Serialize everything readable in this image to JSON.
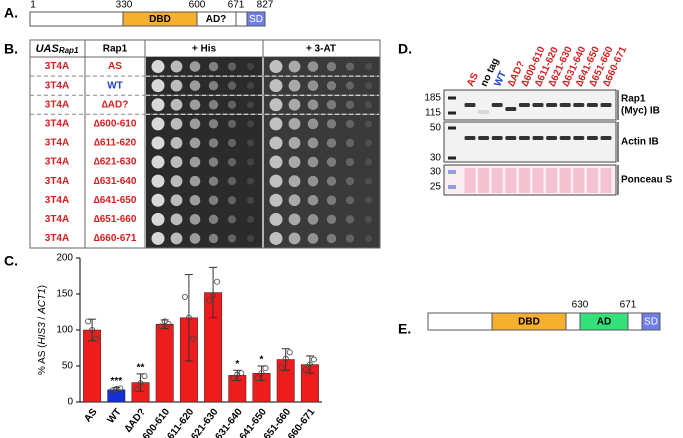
{
  "panel_letters": [
    "A.",
    "B.",
    "C.",
    "D.",
    "E."
  ],
  "panel_a": {
    "positions": [
      "1",
      "330",
      "600",
      "671",
      "827"
    ],
    "domains": [
      "DBD",
      "AD?",
      "SD"
    ]
  },
  "panel_b": {
    "header_uas": "UAS",
    "header_uas_sub": "Rap1",
    "headers": [
      "Rap1",
      "+ His",
      "+ 3-AT"
    ],
    "rows": [
      {
        "uas": "3T4A",
        "rap1": "AS",
        "color": "#d42020"
      },
      {
        "uas": "3T4A",
        "rap1": "WT",
        "color": "#1f3fcf"
      },
      {
        "uas": "3T4A",
        "rap1": "∆AD?",
        "color": "#d42020"
      },
      {
        "uas": "3T4A",
        "rap1": "∆600-610",
        "color": "#d42020"
      },
      {
        "uas": "3T4A",
        "rap1": "∆611-620",
        "color": "#d42020"
      },
      {
        "uas": "3T4A",
        "rap1": "∆621-630",
        "color": "#d42020"
      },
      {
        "uas": "3T4A",
        "rap1": "∆631-640",
        "color": "#d42020"
      },
      {
        "uas": "3T4A",
        "rap1": "∆641-650",
        "color": "#d42020"
      },
      {
        "uas": "3T4A",
        "rap1": "∆651-660",
        "color": "#d42020"
      },
      {
        "uas": "3T4A",
        "rap1": "∆660-671",
        "color": "#d42020"
      }
    ]
  },
  "chart_data": {
    "type": "bar",
    "ylabel_parts": [
      "% AS (",
      "HIS3",
      " / ",
      "ACT1",
      ")"
    ],
    "categories": [
      "AS",
      "WT",
      "∆AD?",
      "∆600-610",
      "∆611-620",
      "∆621-630",
      "∆631-640",
      "∆641-650",
      "∆651-660",
      "∆660-671"
    ],
    "values": [
      100,
      17,
      27,
      108,
      117,
      152,
      37,
      40,
      59,
      52
    ],
    "errors": [
      15,
      3,
      12,
      6,
      60,
      35,
      7,
      10,
      15,
      12
    ],
    "replicates": [
      [
        112,
        100,
        88
      ],
      [
        16,
        18,
        19
      ],
      [
        18,
        26,
        36
      ],
      [
        105,
        112,
        108
      ],
      [
        146,
        117,
        88
      ],
      [
        141,
        148,
        167
      ],
      [
        33,
        38,
        40
      ],
      [
        33,
        40,
        47
      ],
      [
        48,
        60,
        69
      ],
      [
        45,
        52,
        59
      ]
    ],
    "significance": [
      null,
      "***",
      "**",
      null,
      null,
      null,
      "*",
      "*",
      null,
      null
    ],
    "colors": [
      "#ee1c1c",
      "#1530d8",
      "#ee1c1c",
      "#ee1c1c",
      "#ee1c1c",
      "#ee1c1c",
      "#ee1c1c",
      "#ee1c1c",
      "#ee1c1c",
      "#ee1c1c"
    ],
    "ylim": [
      0,
      200
    ],
    "yticks": [
      0,
      50,
      100,
      150,
      200
    ]
  },
  "panel_d": {
    "lanes": [
      "AS",
      "no tag",
      "WT",
      "∆AD?",
      "∆600-610",
      "∆611-620",
      "∆621-630",
      "∆631-640",
      "∆641-650",
      "∆651-660",
      "∆660-671"
    ],
    "lane_colors": [
      "#d42020",
      "#000000",
      "#1f3fcf",
      "#d42020",
      "#d42020",
      "#d42020",
      "#d42020",
      "#d42020",
      "#d42020",
      "#d42020",
      "#d42020"
    ],
    "markers": [
      "185",
      "115",
      "50",
      "30",
      "30",
      "25"
    ],
    "blot_labels": [
      "Rap1",
      "(Myc) IB",
      "Actin IB",
      "Ponceau S"
    ]
  },
  "panel_e": {
    "positions": [
      "630",
      "671"
    ],
    "domains": [
      "DBD",
      "AD",
      "SD"
    ]
  }
}
